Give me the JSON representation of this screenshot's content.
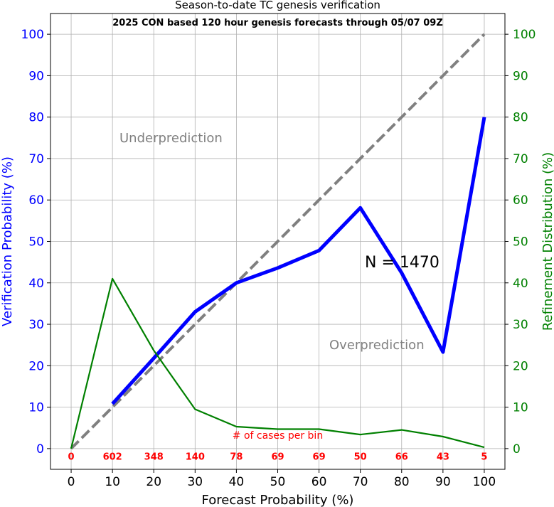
{
  "chart_data": {
    "type": "line",
    "title": "Season-to-date TC genesis verification",
    "subtitle": "2025 CON based 120 hour genesis forecasts through 05/07 09Z",
    "xlabel": "Forecast Probability (%)",
    "ylabel_left": "Verification Probability (%)",
    "ylabel_right": "Refinement Distribution (%)",
    "xlim": [
      -5,
      105
    ],
    "ylim": [
      -5,
      105
    ],
    "x_ticks": [
      0,
      10,
      20,
      30,
      40,
      50,
      60,
      70,
      80,
      90,
      100
    ],
    "y_ticks": [
      0,
      10,
      20,
      30,
      40,
      50,
      60,
      70,
      80,
      90,
      100
    ],
    "grid": true,
    "series": [
      {
        "role": "perfect-reliability",
        "style": "dashed",
        "color": "#808080",
        "x": [
          0,
          100
        ],
        "y": [
          0,
          100
        ]
      },
      {
        "role": "verification",
        "color": "#0000ff",
        "x": [
          10,
          20,
          30,
          40,
          50,
          60,
          70,
          80,
          90,
          100
        ],
        "y": [
          10.8,
          21.8,
          33.0,
          40.0,
          43.6,
          47.8,
          58.1,
          42.4,
          23.3,
          80.0
        ]
      },
      {
        "role": "refinement",
        "color": "#008000",
        "x": [
          0,
          10,
          20,
          30,
          40,
          50,
          60,
          70,
          80,
          90,
          100
        ],
        "y": [
          0.0,
          41.0,
          23.7,
          9.5,
          5.3,
          4.7,
          4.7,
          3.4,
          4.5,
          2.9,
          0.3
        ]
      }
    ],
    "annotations": {
      "underprediction": "Underprediction",
      "overprediction": "Overprediction",
      "n_label": "N = 1470",
      "cases_label": "# of cases per bin"
    },
    "bin_counts": {
      "x": [
        0,
        10,
        20,
        30,
        40,
        50,
        60,
        70,
        80,
        90,
        100
      ],
      "labels": [
        "0",
        "602",
        "348",
        "140",
        "78",
        "69",
        "69",
        "50",
        "66",
        "43",
        "5"
      ],
      "color": "#ff0000"
    },
    "colors": {
      "left_axis": "#0000ff",
      "right_axis": "#008000",
      "annotation_gray": "#808080",
      "grid": "#b0b0b0"
    }
  }
}
